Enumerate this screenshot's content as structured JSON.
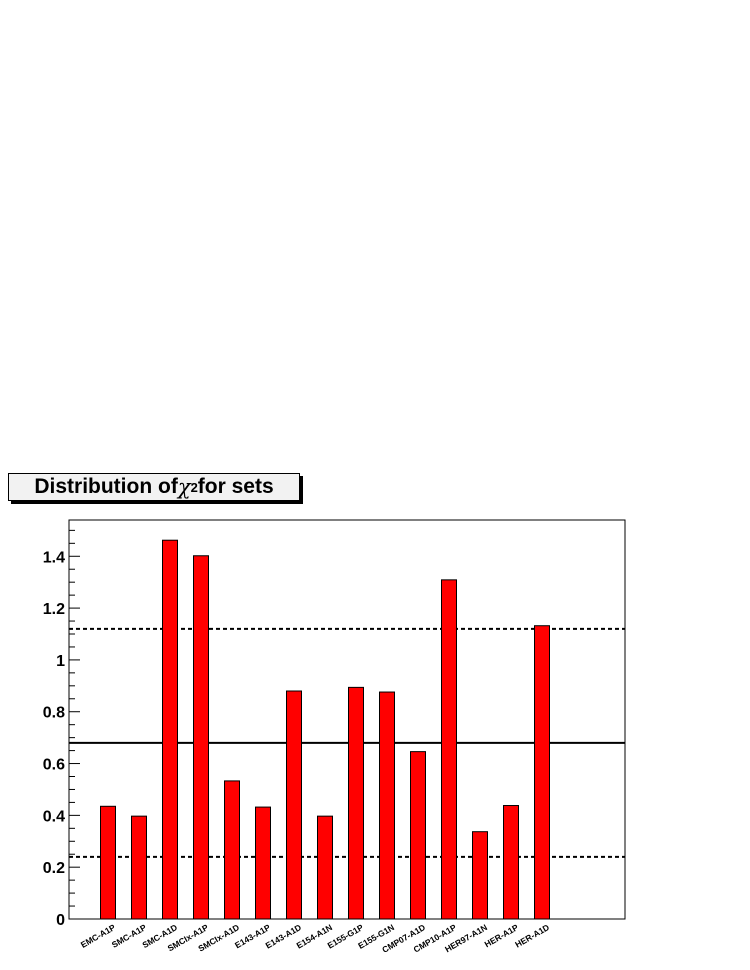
{
  "chart_data": {
    "type": "bar",
    "title_prefix": "Distribution of ",
    "title_symbol": "χ",
    "title_sup": "2",
    "title_suffix": " for sets",
    "categories": [
      "EMC-A1P",
      "SMC-A1P",
      "SMC-A1D",
      "SMCIx-A1P",
      "SMCIx-A1D",
      "E143-A1P",
      "E143-A1D",
      "E154-A1N",
      "E155-G1P",
      "E155-G1N",
      "CMP07-A1D",
      "CMP10-A1P",
      "HER97-A1N",
      "HER-A1P",
      "HER-A1D"
    ],
    "values": [
      0.435,
      0.397,
      1.462,
      1.402,
      0.533,
      0.432,
      0.88,
      0.397,
      0.894,
      0.876,
      0.646,
      1.309,
      0.337,
      0.438,
      1.132
    ],
    "ylim": [
      0,
      1.54
    ],
    "yticks": [
      0,
      0.2,
      0.4,
      0.6,
      0.8,
      1,
      1.2,
      1.4
    ],
    "ytick_labels": [
      "0",
      "0.2",
      "0.4",
      "0.6",
      "0.8",
      "1",
      "1.2",
      "1.4"
    ],
    "reference_lines": [
      {
        "value": 1.12,
        "style": "dashed"
      },
      {
        "value": 0.68,
        "style": "solid"
      },
      {
        "value": 0.24,
        "style": "dashed"
      }
    ],
    "bar_color": "#ff0000",
    "grid": false
  }
}
